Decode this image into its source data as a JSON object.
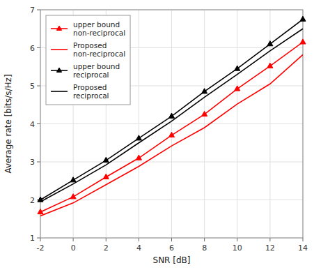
{
  "chart_data": {
    "type": "line",
    "x": [
      -2,
      0,
      2,
      4,
      6,
      8,
      10,
      12,
      14
    ],
    "xlabel": "SNR [dB]",
    "ylabel": "Average rate [bits/s/Hz]",
    "xlim": [
      -2,
      14
    ],
    "ylim": [
      1,
      7
    ],
    "xticks": [
      -2,
      0,
      2,
      4,
      6,
      8,
      10,
      12,
      14
    ],
    "yticks": [
      1,
      2,
      3,
      4,
      5,
      6,
      7
    ],
    "grid": true,
    "legend": "upper left",
    "series": [
      {
        "name": "upper bound\nnon-reciprocal",
        "color": "#ff0000",
        "marker": "triangle",
        "values": [
          1.68,
          2.08,
          2.6,
          3.1,
          3.7,
          4.25,
          4.92,
          5.52,
          6.15
        ]
      },
      {
        "name": "Proposed\nnon-reciprocal",
        "color": "#ff0000",
        "marker": "none",
        "values": [
          1.58,
          1.92,
          2.4,
          2.88,
          3.42,
          3.9,
          4.52,
          5.05,
          5.82
        ]
      },
      {
        "name": "upper bound\nreciprocal",
        "color": "#000000",
        "marker": "triangle",
        "values": [
          2.0,
          2.52,
          3.04,
          3.62,
          4.2,
          4.85,
          5.45,
          6.1,
          6.75
        ]
      },
      {
        "name": "Proposed\nreciprocal",
        "color": "#000000",
        "marker": "none",
        "values": [
          1.95,
          2.42,
          2.92,
          3.5,
          4.07,
          4.7,
          5.3,
          5.92,
          6.5
        ]
      }
    ]
  }
}
